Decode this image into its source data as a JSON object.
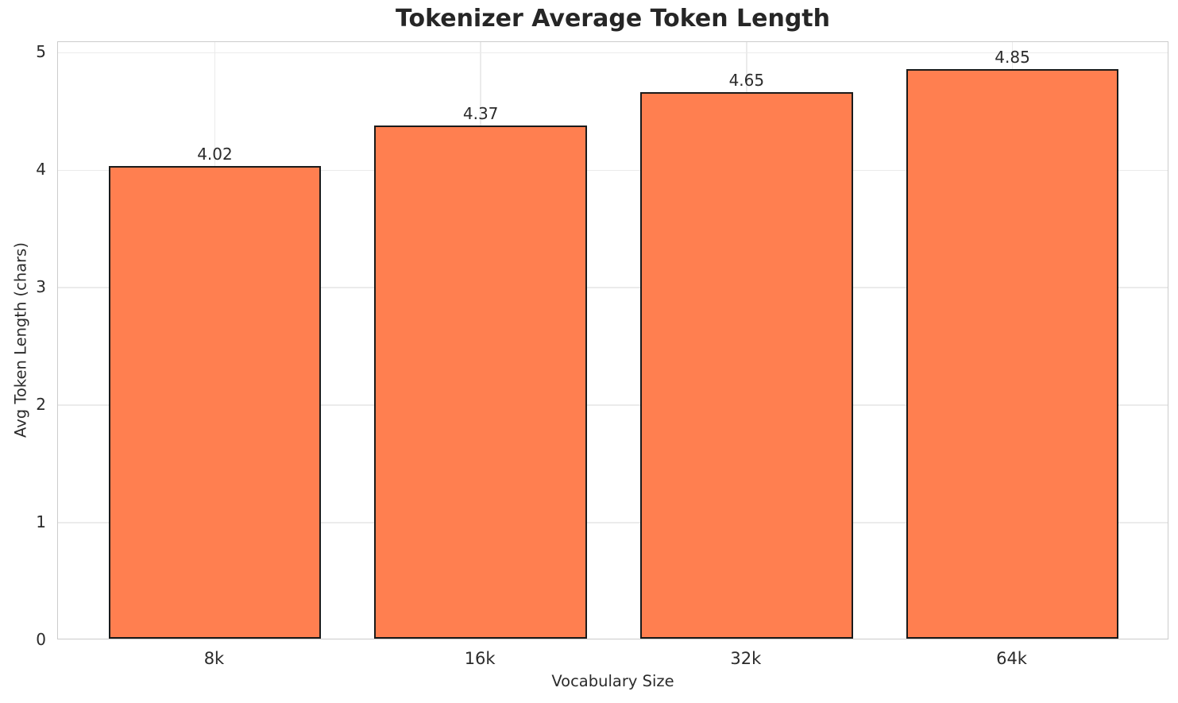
{
  "chart_data": {
    "type": "bar",
    "title": "Tokenizer Average Token Length",
    "xlabel": "Vocabulary Size",
    "ylabel": "Avg Token Length (chars)",
    "categories": [
      "8k",
      "16k",
      "32k",
      "64k"
    ],
    "values": [
      4.02,
      4.37,
      4.65,
      4.85
    ],
    "bar_labels": [
      "4.02",
      "4.37",
      "4.65",
      "4.85"
    ],
    "yticks": [
      0,
      1,
      2,
      3,
      4,
      5
    ],
    "ytick_labels": [
      "0",
      "1",
      "2",
      "3",
      "4",
      "5"
    ],
    "ylim": [
      0,
      5.09
    ],
    "xlim": [
      -0.59,
      3.59
    ],
    "bar_width_units": 0.8,
    "grid": true,
    "legend": false,
    "colors": {
      "bar_fill": "#FF7F50",
      "bar_edge": "#1A1A1A",
      "grid": "#EBEBEB",
      "spine": "#CCCCCC",
      "text": "#2B2B2B",
      "title_text": "#262626",
      "background": "#FFFFFF"
    }
  }
}
